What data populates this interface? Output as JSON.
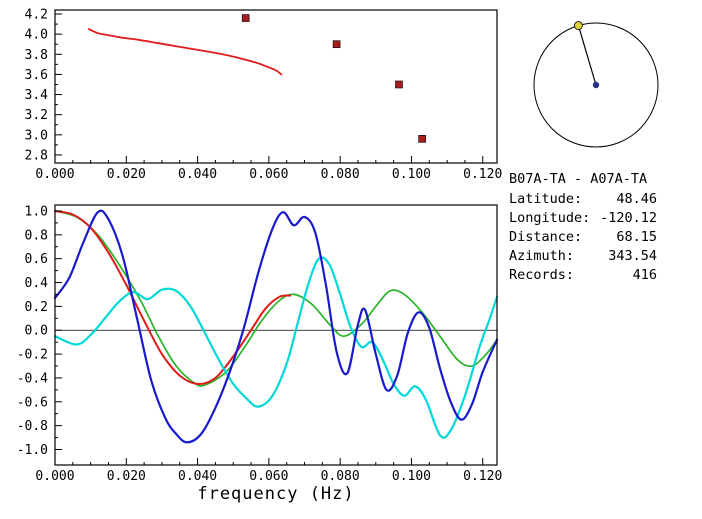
{
  "xlabel": "frequency (Hz)",
  "station_info": {
    "title": "B07A-TA - A07A-TA",
    "fields": [
      {
        "label": "Latitude:",
        "value": "48.46"
      },
      {
        "label": "Longitude:",
        "value": "-120.12"
      },
      {
        "label": "Distance:",
        "value": "68.15"
      },
      {
        "label": "Azimuth:",
        "value": "343.54"
      },
      {
        "label": "Records:",
        "value": "416"
      }
    ]
  },
  "azimuth_dial": {
    "azimuth_deg": 343.54,
    "circle_color": "#000000",
    "needle_color": "#000000",
    "end_marker_color": "#ddd23e",
    "center_marker_color": "#25308f"
  },
  "chart_data": [
    {
      "type": "line",
      "name": "group-velocity-dispersion",
      "xlim": [
        0,
        0.124
      ],
      "ylim": [
        2.72,
        4.24
      ],
      "xticks": [
        0,
        0.02,
        0.04,
        0.06,
        0.08,
        0.1,
        0.12
      ],
      "xtick_labels": [
        "0.000",
        "0.020",
        "0.040",
        "0.060",
        "0.080",
        "0.100",
        "0.120"
      ],
      "yticks": [
        2.8,
        3.0,
        3.2,
        3.4,
        3.6,
        3.8,
        4.0,
        4.2
      ],
      "ytick_labels": [
        "2.8",
        "3.0",
        "3.2",
        "3.4",
        "3.6",
        "3.8",
        "4.0",
        "4.2"
      ],
      "zero_line": false,
      "series": [
        {
          "name": "dispersion-curve",
          "color": "#e01b1b",
          "width": 1.8,
          "points": [
            [
              0.0095,
              4.05
            ],
            [
              0.012,
              4.01
            ],
            [
              0.015,
              3.99
            ],
            [
              0.019,
              3.965
            ],
            [
              0.024,
              3.94
            ],
            [
              0.029,
              3.91
            ],
            [
              0.034,
              3.88
            ],
            [
              0.039,
              3.85
            ],
            [
              0.044,
              3.82
            ],
            [
              0.049,
              3.785
            ],
            [
              0.053,
              3.75
            ],
            [
              0.057,
              3.71
            ],
            [
              0.06,
              3.67
            ],
            [
              0.062,
              3.64
            ],
            [
              0.0635,
              3.6
            ]
          ]
        }
      ],
      "markers": [
        {
          "name": "group-velocity-picks",
          "shape": "square",
          "color": "#a81e1e",
          "size": 7,
          "points": [
            [
              0.0535,
              4.16
            ],
            [
              0.079,
              3.9
            ],
            [
              0.0965,
              3.5
            ],
            [
              0.103,
              2.96
            ]
          ]
        }
      ]
    },
    {
      "type": "line",
      "name": "correlation-functions",
      "xlim": [
        0,
        0.124
      ],
      "ylim": [
        -1.13,
        1.05
      ],
      "xticks": [
        0,
        0.02,
        0.04,
        0.06,
        0.08,
        0.1,
        0.12
      ],
      "xtick_labels": [
        "0.000",
        "0.020",
        "0.040",
        "0.060",
        "0.080",
        "0.100",
        "0.120"
      ],
      "yticks": [
        -1.0,
        -0.8,
        -0.6,
        -0.4,
        -0.2,
        0.0,
        0.2,
        0.4,
        0.6,
        0.8,
        1.0
      ],
      "ytick_labels": [
        "-1.0",
        "-0.8",
        "-0.6",
        "-0.4",
        "-0.2",
        "0.0",
        "0.2",
        "0.4",
        "0.6",
        "0.8",
        "1.0"
      ],
      "zero_line": true,
      "series": [
        {
          "name": "green-curve",
          "color": "#28b428",
          "width": 1.7,
          "points": [
            [
              0,
              1.0
            ],
            [
              0.006,
              0.95
            ],
            [
              0.012,
              0.8
            ],
            [
              0.018,
              0.55
            ],
            [
              0.024,
              0.25
            ],
            [
              0.029,
              -0.05
            ],
            [
              0.034,
              -0.3
            ],
            [
              0.039,
              -0.44
            ],
            [
              0.042,
              -0.46
            ],
            [
              0.048,
              -0.35
            ],
            [
              0.053,
              -0.15
            ],
            [
              0.058,
              0.08
            ],
            [
              0.063,
              0.25
            ],
            [
              0.067,
              0.3
            ],
            [
              0.072,
              0.22
            ],
            [
              0.077,
              0.05
            ],
            [
              0.081,
              -0.05
            ],
            [
              0.086,
              0.05
            ],
            [
              0.09,
              0.2
            ],
            [
              0.094,
              0.33
            ],
            [
              0.098,
              0.3
            ],
            [
              0.103,
              0.15
            ],
            [
              0.108,
              -0.05
            ],
            [
              0.113,
              -0.25
            ],
            [
              0.117,
              -0.3
            ],
            [
              0.121,
              -0.2
            ],
            [
              0.124,
              -0.08
            ]
          ]
        },
        {
          "name": "red-curve",
          "color": "#e01b1b",
          "width": 2.0,
          "points": [
            [
              0,
              1.0
            ],
            [
              0.005,
              0.97
            ],
            [
              0.01,
              0.86
            ],
            [
              0.015,
              0.65
            ],
            [
              0.02,
              0.38
            ],
            [
              0.025,
              0.08
            ],
            [
              0.03,
              -0.2
            ],
            [
              0.035,
              -0.38
            ],
            [
              0.04,
              -0.45
            ],
            [
              0.045,
              -0.4
            ],
            [
              0.05,
              -0.22
            ],
            [
              0.055,
              0.0
            ],
            [
              0.059,
              0.18
            ],
            [
              0.063,
              0.28
            ],
            [
              0.066,
              0.29
            ]
          ]
        },
        {
          "name": "cyan-curve",
          "color": "#00d8d8",
          "width": 2.2,
          "points": [
            [
              0,
              -0.05
            ],
            [
              0.006,
              -0.12
            ],
            [
              0.01,
              -0.04
            ],
            [
              0.014,
              0.1
            ],
            [
              0.018,
              0.24
            ],
            [
              0.022,
              0.32
            ],
            [
              0.026,
              0.26
            ],
            [
              0.03,
              0.34
            ],
            [
              0.034,
              0.33
            ],
            [
              0.038,
              0.2
            ],
            [
              0.042,
              -0.02
            ],
            [
              0.046,
              -0.25
            ],
            [
              0.05,
              -0.45
            ],
            [
              0.054,
              -0.58
            ],
            [
              0.057,
              -0.64
            ],
            [
              0.061,
              -0.55
            ],
            [
              0.065,
              -0.28
            ],
            [
              0.068,
              0.05
            ],
            [
              0.071,
              0.38
            ],
            [
              0.074,
              0.6
            ],
            [
              0.077,
              0.55
            ],
            [
              0.08,
              0.3
            ],
            [
              0.083,
              0.02
            ],
            [
              0.086,
              -0.14
            ],
            [
              0.089,
              -0.1
            ],
            [
              0.092,
              -0.25
            ],
            [
              0.095,
              -0.45
            ],
            [
              0.098,
              -0.55
            ],
            [
              0.101,
              -0.47
            ],
            [
              0.104,
              -0.58
            ],
            [
              0.108,
              -0.88
            ],
            [
              0.111,
              -0.84
            ],
            [
              0.115,
              -0.55
            ],
            [
              0.119,
              -0.15
            ],
            [
              0.122,
              0.1
            ],
            [
              0.124,
              0.28
            ]
          ]
        },
        {
          "name": "blue-curve",
          "color": "#1a1acd",
          "width": 2.2,
          "points": [
            [
              0,
              0.27
            ],
            [
              0.004,
              0.44
            ],
            [
              0.008,
              0.74
            ],
            [
              0.012,
              0.99
            ],
            [
              0.015,
              0.93
            ],
            [
              0.019,
              0.62
            ],
            [
              0.023,
              0.1
            ],
            [
              0.027,
              -0.42
            ],
            [
              0.031,
              -0.74
            ],
            [
              0.034,
              -0.87
            ],
            [
              0.037,
              -0.94
            ],
            [
              0.041,
              -0.87
            ],
            [
              0.045,
              -0.65
            ],
            [
              0.049,
              -0.35
            ],
            [
              0.053,
              0.02
            ],
            [
              0.057,
              0.48
            ],
            [
              0.061,
              0.85
            ],
            [
              0.064,
              0.99
            ],
            [
              0.067,
              0.88
            ],
            [
              0.07,
              0.95
            ],
            [
              0.073,
              0.82
            ],
            [
              0.076,
              0.38
            ],
            [
              0.079,
              -0.18
            ],
            [
              0.082,
              -0.36
            ],
            [
              0.085,
              0.05
            ],
            [
              0.087,
              0.17
            ],
            [
              0.09,
              -0.2
            ],
            [
              0.093,
              -0.5
            ],
            [
              0.096,
              -0.38
            ],
            [
              0.099,
              -0.02
            ],
            [
              0.102,
              0.15
            ],
            [
              0.105,
              0.02
            ],
            [
              0.108,
              -0.32
            ],
            [
              0.111,
              -0.6
            ],
            [
              0.114,
              -0.75
            ],
            [
              0.117,
              -0.62
            ],
            [
              0.12,
              -0.35
            ],
            [
              0.124,
              -0.08
            ]
          ]
        }
      ],
      "markers": []
    }
  ]
}
